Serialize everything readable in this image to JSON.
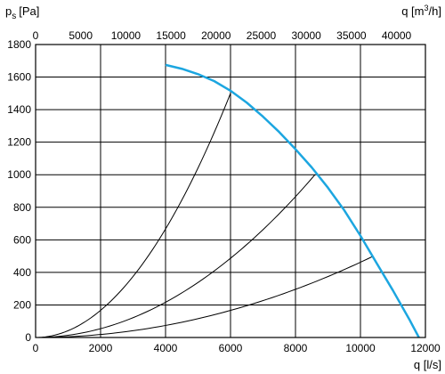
{
  "chart_data": {
    "type": "line",
    "title": "",
    "ylabel_main": "p",
    "ylabel_sub": "s",
    "ylabel_unit": "[Pa]",
    "xlabel": "q [l/s]",
    "x2label_main": "q [m",
    "x2label_sup": "3",
    "x2label_end": "/h]",
    "xlim": [
      0,
      12000
    ],
    "ylim": [
      0,
      1800
    ],
    "x2lim": [
      0,
      43200
    ],
    "grid": true,
    "x_ticks": [
      "0",
      "2000",
      "4000",
      "6000",
      "8000",
      "10000",
      "12000"
    ],
    "x_tick_values": [
      0,
      2000,
      4000,
      6000,
      8000,
      10000,
      12000
    ],
    "y_ticks": [
      "0",
      "200",
      "400",
      "600",
      "800",
      "1000",
      "1200",
      "1400",
      "1600",
      "1800"
    ],
    "y_tick_values": [
      0,
      200,
      400,
      600,
      800,
      1000,
      1200,
      1400,
      1600,
      1800
    ],
    "x2_ticks": [
      "0",
      "5000",
      "10000",
      "15000",
      "20000",
      "25000",
      "30000",
      "35000",
      "40000"
    ],
    "x2_tick_values": [
      0,
      5000,
      10000,
      15000,
      20000,
      25000,
      30000,
      35000,
      40000
    ],
    "fan_curve_color": "#1ca6e0",
    "system_curve_color": "#000000",
    "fan_curve": {
      "x": [
        4000,
        4500,
        5000,
        5500,
        6000,
        6500,
        7000,
        7500,
        8000,
        8500,
        9000,
        9500,
        10000,
        10500,
        11000,
        11500,
        11800
      ],
      "y": [
        1675,
        1651,
        1618,
        1575,
        1516,
        1443,
        1357,
        1262,
        1157,
        1045,
        920,
        782,
        625,
        456,
        289,
        113,
        0
      ]
    },
    "system_curves": [
      {
        "x_end": 6000,
        "y_end": 1500
      },
      {
        "x_end": 8600,
        "y_end": 1000
      },
      {
        "x_end": 10400,
        "y_end": 500
      }
    ]
  }
}
